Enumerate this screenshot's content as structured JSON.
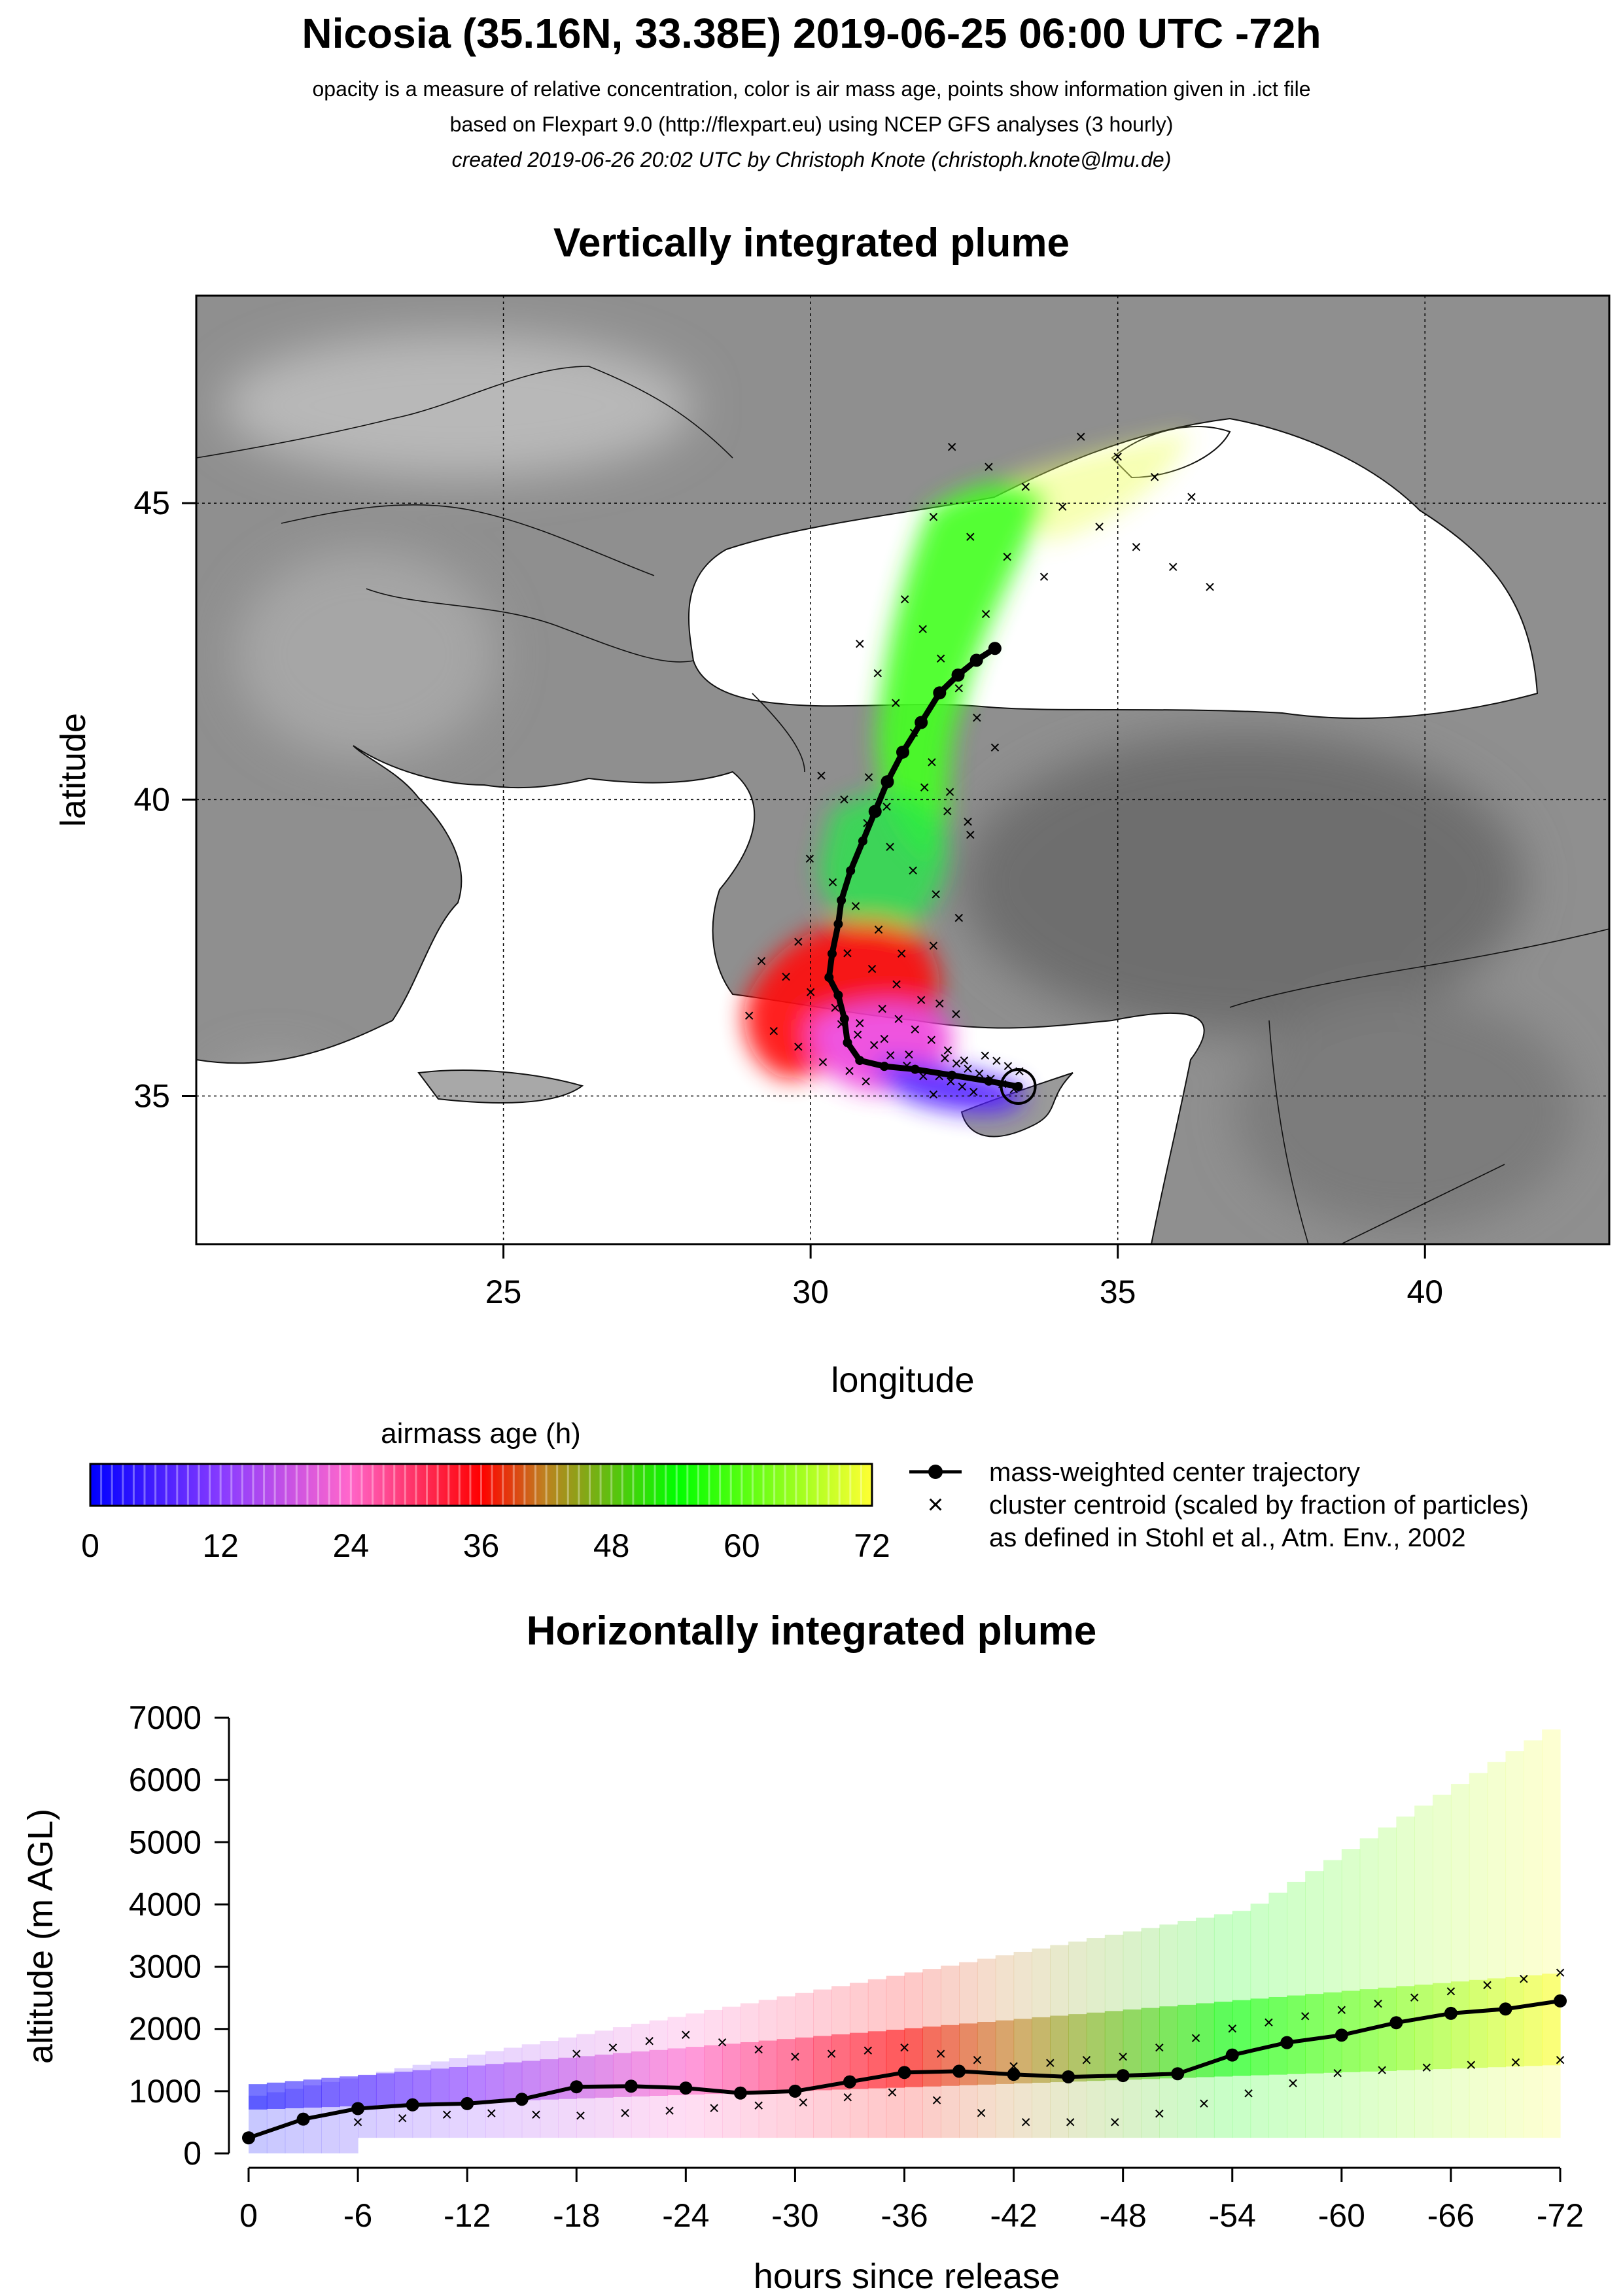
{
  "header": {
    "title": "Nicosia (35.16N, 33.38E) 2019-06-25 06:00 UTC -72h",
    "subtitle_1": "opacity is a measure of relative concentration, color is air mass age, points show information given in .ict file",
    "subtitle_2": "based on Flexpart 9.0 (http://flexpart.eu) using NCEP GFS analyses (3 hourly)",
    "subtitle_3": "created 2019-06-26 20:02 UTC by Christoph Knote (christoph.knote@lmu.de)"
  },
  "colors": {
    "land": "#8f8f8f",
    "sea": "#ffffff",
    "trajectory": "#000000",
    "age_0": "#0000ff",
    "age_24": "#ff66cc",
    "age_36": "#ff0000",
    "age_54": "#00ff00",
    "age_72": "#ffff33"
  },
  "legend": {
    "colorbar_title": "airmass age (h)",
    "colorbar_ticks": [
      "0",
      "12",
      "24",
      "36",
      "48",
      "60",
      "72"
    ],
    "trajectory_label": "mass-weighted center trajectory",
    "cluster_label_1": "cluster centroid (scaled by fraction of particles)",
    "cluster_label_2": "as defined in Stohl et al., Atm. Env., 2002"
  },
  "chart_data": [
    {
      "type": "scatter",
      "title": "Vertically integrated plume",
      "xlabel": "longitude",
      "ylabel": "latitude",
      "xlim": [
        20,
        43
      ],
      "ylim": [
        32.5,
        48.5
      ],
      "xticks": [
        "25",
        "30",
        "35",
        "40"
      ],
      "yticks": [
        "35",
        "40",
        "45"
      ],
      "grid": true,
      "release_point": {
        "lon": 33.38,
        "lat": 35.16
      },
      "center_trajectory": {
        "lon": [
          33.38,
          32.9,
          32.3,
          31.7,
          31.2,
          30.8,
          30.6,
          30.55,
          30.45,
          30.3,
          30.35,
          30.45,
          30.5,
          30.65,
          30.85,
          31.05,
          31.25,
          31.5,
          31.8,
          32.1,
          32.4,
          32.7,
          33.0
        ],
        "lat": [
          35.16,
          35.25,
          35.35,
          35.45,
          35.5,
          35.6,
          35.9,
          36.3,
          36.7,
          37.0,
          37.4,
          37.9,
          38.3,
          38.8,
          39.3,
          39.8,
          40.3,
          40.8,
          41.3,
          41.8,
          42.1,
          42.35,
          42.55
        ]
      },
      "plume_bands": [
        {
          "age_h": 6,
          "lon": [
            32.0,
            33.4
          ],
          "lat": [
            35.0,
            35.7
          ]
        },
        {
          "age_h": 18,
          "lon": [
            30.5,
            32.5
          ],
          "lat": [
            35.2,
            36.6
          ]
        },
        {
          "age_h": 30,
          "lon": [
            29.0,
            32.0
          ],
          "lat": [
            35.5,
            37.6
          ]
        },
        {
          "age_h": 48,
          "lon": [
            29.8,
            32.6
          ],
          "lat": [
            37.3,
            40.5
          ]
        },
        {
          "age_h": 58,
          "lon": [
            30.8,
            33.0
          ],
          "lat": [
            39.5,
            43.5
          ]
        },
        {
          "age_h": 68,
          "lon": [
            32.0,
            36.5
          ],
          "lat": [
            43.5,
            46.2
          ]
        }
      ]
    },
    {
      "type": "scatter",
      "title": "Horizontally integrated plume",
      "xlabel": "hours since release",
      "ylabel": "altitude (m AGL)",
      "xlim": [
        0,
        -72
      ],
      "ylim": [
        0,
        7000
      ],
      "xticks": [
        "0",
        "-6",
        "-12",
        "-18",
        "-24",
        "-30",
        "-36",
        "-42",
        "-48",
        "-54",
        "-60",
        "-66",
        "-72"
      ],
      "yticks": [
        "0",
        "1000",
        "2000",
        "3000",
        "4000",
        "5000",
        "6000",
        "7000"
      ],
      "center_trajectory": {
        "hours": [
          0,
          -3,
          -6,
          -9,
          -12,
          -15,
          -18,
          -21,
          -24,
          -27,
          -30,
          -33,
          -36,
          -39,
          -42,
          -45,
          -48,
          -51,
          -54,
          -57,
          -60,
          -63,
          -66,
          -69,
          -72
        ],
        "altitude": [
          250,
          550,
          720,
          780,
          800,
          870,
          1070,
          1080,
          1050,
          970,
          1000,
          1150,
          1300,
          1320,
          1270,
          1230,
          1250,
          1280,
          1580,
          1780,
          1900,
          2100,
          2250,
          2320,
          2450
        ]
      },
      "cluster_upper": {
        "hours": [
          -18,
          -24,
          -30,
          -36,
          -42,
          -48,
          -54,
          -60,
          -66,
          -72
        ],
        "altitude": [
          1600,
          1900,
          1550,
          1700,
          1400,
          1550,
          2000,
          2300,
          2600,
          2900
        ]
      },
      "cluster_lower": {
        "hours": [
          -6,
          -12,
          -18,
          -24,
          -30,
          -36,
          -42,
          -48,
          -54,
          -60,
          -66,
          -72
        ],
        "altitude": [
          500,
          650,
          600,
          700,
          800,
          1000,
          500,
          500,
          900,
          1300,
          1400,
          1500
        ]
      },
      "plume_columns": [
        {
          "age_h": 3,
          "hours": [
            0,
            -6
          ],
          "alt": [
            0,
            1000
          ]
        },
        {
          "age_h": 12,
          "hours": [
            -6,
            -16
          ],
          "alt": [
            200,
            1600
          ]
        },
        {
          "age_h": 24,
          "hours": [
            -16,
            -28
          ],
          "alt": [
            200,
            1900
          ]
        },
        {
          "age_h": 36,
          "hours": [
            -28,
            -38
          ],
          "alt": [
            400,
            2300
          ]
        },
        {
          "age_h": 46,
          "hours": [
            -38,
            -48
          ],
          "alt": [
            200,
            3000
          ]
        },
        {
          "age_h": 56,
          "hours": [
            -48,
            -60
          ],
          "alt": [
            200,
            4000
          ]
        },
        {
          "age_h": 68,
          "hours": [
            -60,
            -72
          ],
          "alt": [
            300,
            5000
          ]
        }
      ]
    }
  ]
}
